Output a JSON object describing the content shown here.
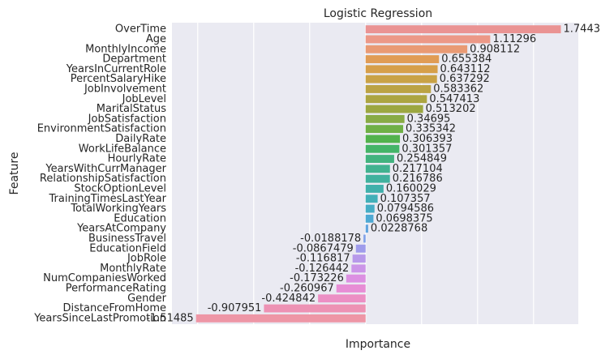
{
  "chart_data": {
    "type": "barh",
    "title": "Logistic Regression",
    "x_label": "Importance",
    "y_label": "Feature",
    "categories": [
      "OverTime",
      "Age",
      "MonthlyIncome",
      "Department",
      "YearsInCurrentRole",
      "PercentSalaryHike",
      "JobInvolvement",
      "JobLevel",
      "MaritalStatus",
      "JobSatisfaction",
      "EnvironmentSatisfaction",
      "DailyRate",
      "WorkLifeBalance",
      "HourlyRate",
      "YearsWithCurrManager",
      "RelationshipSatisfaction",
      "StockOptionLevel",
      "TrainingTimesLastYear",
      "TotalWorkingYears",
      "Education",
      "YearsAtCompany",
      "BusinessTravel",
      "EducationField",
      "JobRole",
      "MonthlyRate",
      "NumCompaniesWorked",
      "PerformanceRating",
      "Gender",
      "DistanceFromHome",
      "YearsSinceLastPromotion"
    ],
    "values": [
      1.7443,
      1.11296,
      0.908112,
      0.655384,
      0.643112,
      0.637292,
      0.583362,
      0.547413,
      0.513202,
      0.34695,
      0.335342,
      0.306393,
      0.301357,
      0.254849,
      0.217104,
      0.216786,
      0.160029,
      0.107357,
      0.0794586,
      0.0698375,
      0.0228768,
      -0.0188178,
      -0.0867479,
      -0.116817,
      -0.126442,
      -0.173226,
      -0.260967,
      -0.424842,
      -0.907951,
      -1.51485
    ],
    "colors": [
      "#ea9393",
      "#ec9887",
      "#e99a74",
      "#e09c55",
      "#d69f4a",
      "#c9a246",
      "#bba344",
      "#aca542",
      "#9ca741",
      "#88ab45",
      "#6fb046",
      "#52b24d",
      "#44b468",
      "#42b37f",
      "#41b290",
      "#40b19e",
      "#40b0ab",
      "#42afb8",
      "#46adc5",
      "#4ea9d3",
      "#60a4de",
      "#7fa0e8",
      "#9f9ceb",
      "#b799ea",
      "#cb95e8",
      "#dc90e2",
      "#e78dd5",
      "#ec8fc4",
      "#ed92b4",
      "#ee96a6"
    ],
    "xlim": [
      -1.73,
      1.9
    ],
    "xticks": [
      -1.5,
      -1,
      -0.5,
      0,
      0.5,
      1,
      1.5
    ],
    "grid": true
  }
}
